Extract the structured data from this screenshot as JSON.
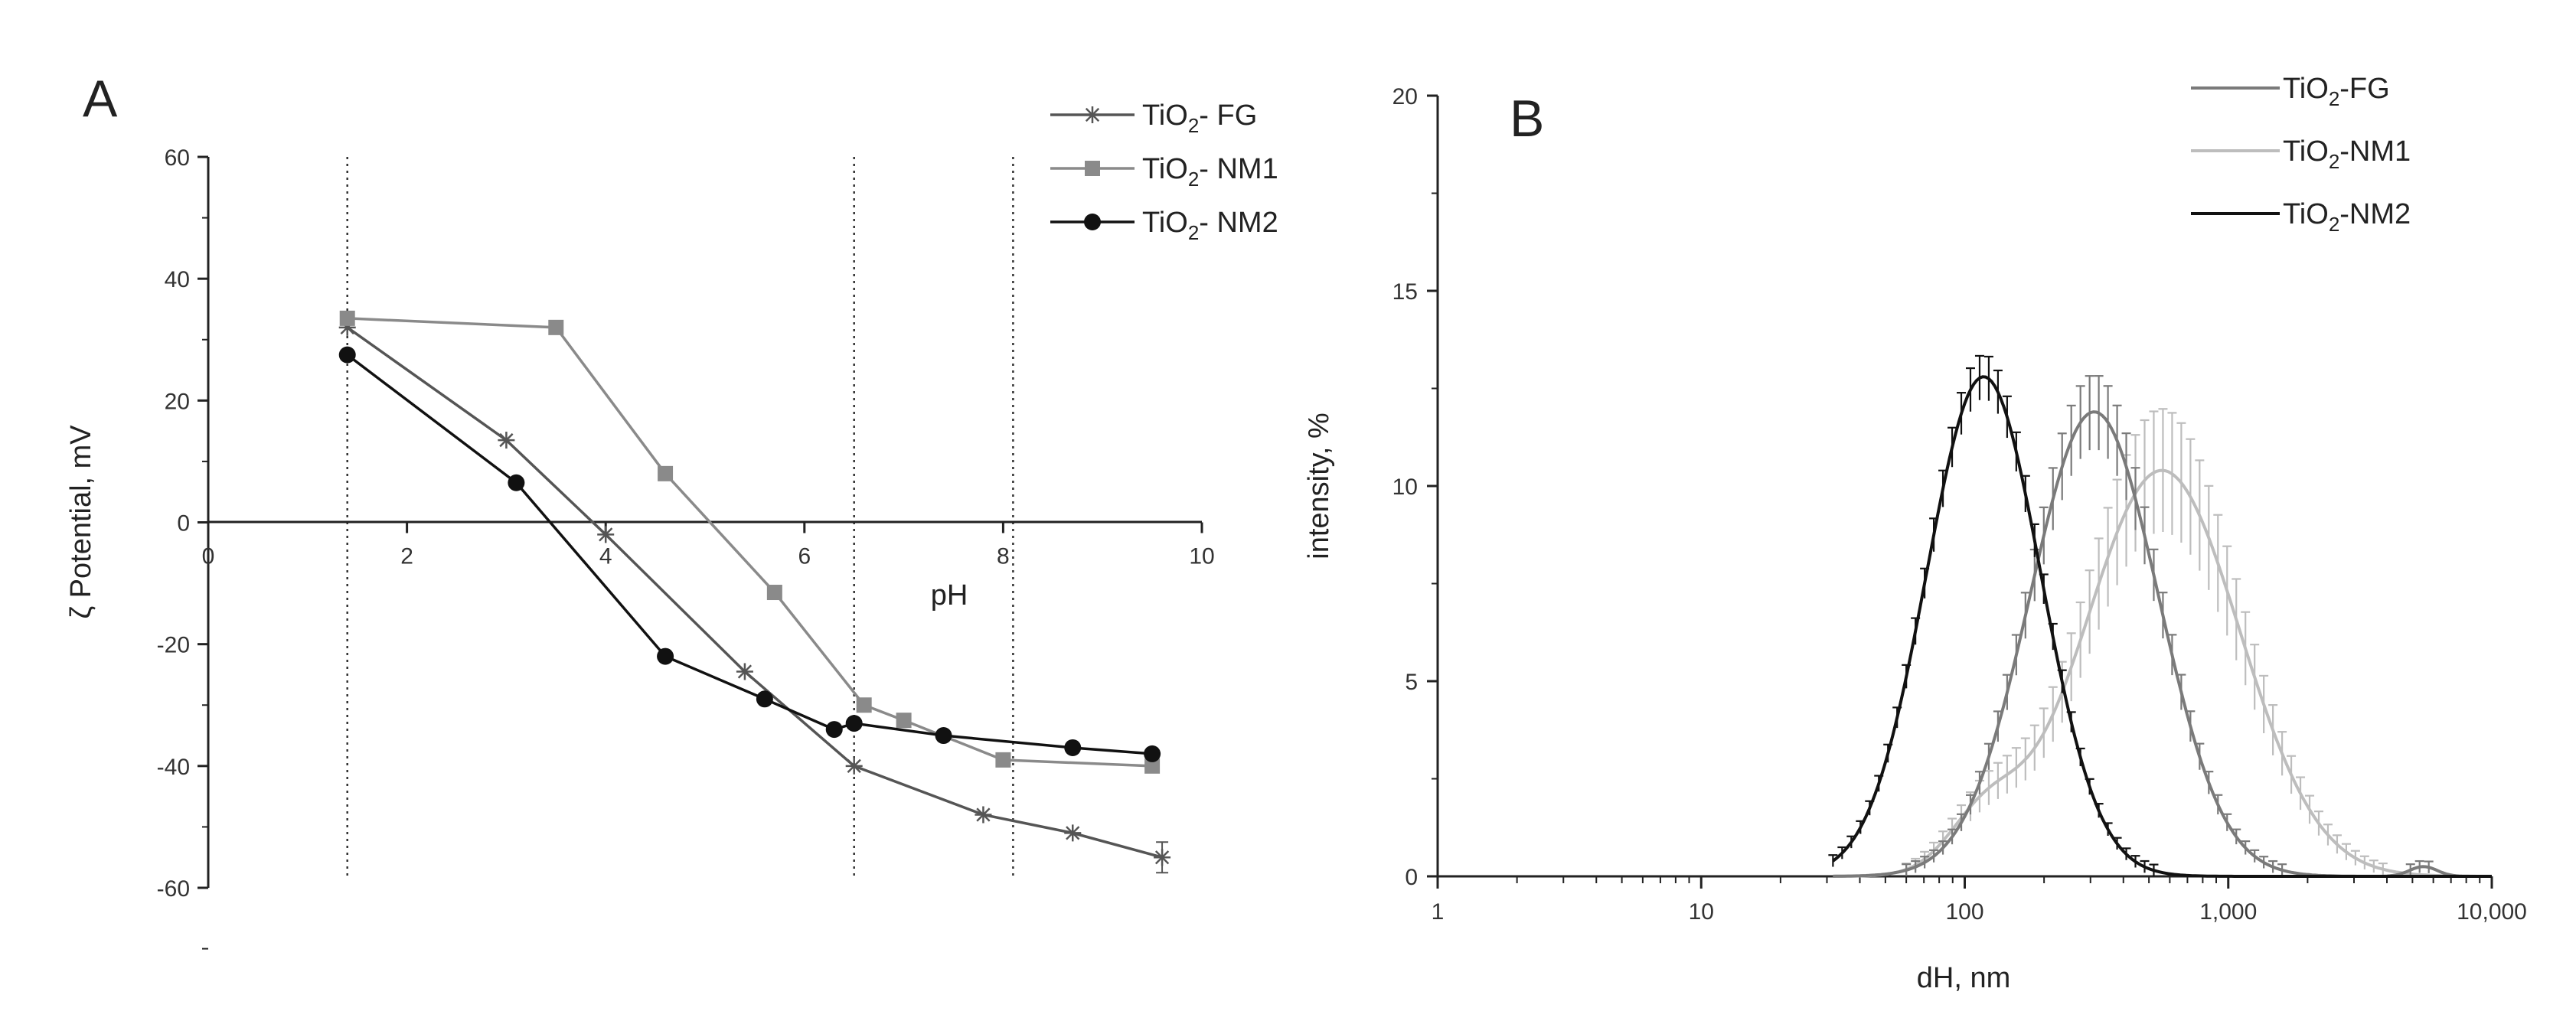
{
  "chart_data": [
    {
      "panel": "A",
      "type": "line",
      "title": "",
      "xlabel": "pH",
      "ylabel": "ζ Potential, mV",
      "xlim": [
        0,
        10
      ],
      "ylim": [
        -60,
        60
      ],
      "x_ticks": [
        "0",
        "2",
        "4",
        "6",
        "8",
        "10"
      ],
      "y_ticks": [
        "60",
        "40",
        "20",
        "0",
        "-20",
        "-40",
        "-60"
      ],
      "reference_lines_x": [
        1.4,
        6.5,
        8.1
      ],
      "series": [
        {
          "name_prefix": "TiO",
          "name_sub": "2",
          "name_suffix": "- FG",
          "marker": "asterisk",
          "color": "#555555",
          "x": [
            1.4,
            3.0,
            4.0,
            5.4,
            6.5,
            7.8,
            8.7,
            9.6
          ],
          "y": [
            32,
            13.5,
            -2,
            -24.5,
            -40,
            -48,
            -51,
            -55
          ]
        },
        {
          "name_prefix": "TiO",
          "name_sub": "2",
          "name_suffix": "- NM1",
          "marker": "square",
          "color": "#8a8a8a",
          "x": [
            1.4,
            3.5,
            4.6,
            5.7,
            6.6,
            7.0,
            8.0,
            9.5
          ],
          "y": [
            33.5,
            32,
            8,
            -11.5,
            -30,
            -32.5,
            -39,
            -40
          ]
        },
        {
          "name_prefix": "TiO",
          "name_sub": "2",
          "name_suffix": "- NM2",
          "marker": "circle",
          "color": "#111111",
          "x": [
            1.4,
            3.1,
            4.6,
            5.6,
            6.3,
            6.5,
            7.4,
            8.7,
            9.5
          ],
          "y": [
            27.5,
            6.5,
            -22,
            -29,
            -34,
            -33,
            -35,
            -37,
            -38
          ]
        }
      ]
    },
    {
      "panel": "B",
      "type": "line",
      "title": "",
      "xlabel": "dH, nm",
      "ylabel": "intensity, %",
      "xscale": "log",
      "xlim": [
        1,
        10000
      ],
      "ylim": [
        0,
        20
      ],
      "x_ticks": [
        {
          "v": 1,
          "label": "1"
        },
        {
          "v": 10,
          "label": "10"
        },
        {
          "v": 100,
          "label": "100"
        },
        {
          "v": 1000,
          "label": "1,000"
        },
        {
          "v": 10000,
          "label": "10,000"
        }
      ],
      "y_ticks": [
        "0",
        "5",
        "10",
        "15",
        "20"
      ],
      "series": [
        {
          "name_prefix": "TiO",
          "name_sub": "2",
          "name_suffix": "-FG",
          "color": "#7a7a7a",
          "center": 310,
          "sigma": 0.56,
          "peak": 11.9,
          "error_frac": 0.07,
          "tail": [
            5500,
            0.12,
            0.25
          ]
        },
        {
          "name_prefix": "TiO",
          "name_sub": "2",
          "name_suffix": "-NM1",
          "color": "#bdbdbd",
          "center": 560,
          "sigma": 0.68,
          "peak": 10.4,
          "error_frac": 0.14,
          "shoulder": [
            120,
            0.32,
            1.4
          ]
        },
        {
          "name_prefix": "TiO",
          "name_sub": "2",
          "name_suffix": "-NM2",
          "color": "#111111",
          "center": 118,
          "sigma": 0.5,
          "peak": 12.8,
          "error_frac": 0.035
        }
      ]
    }
  ],
  "panels": {
    "a_label": "A",
    "b_label": "B"
  }
}
